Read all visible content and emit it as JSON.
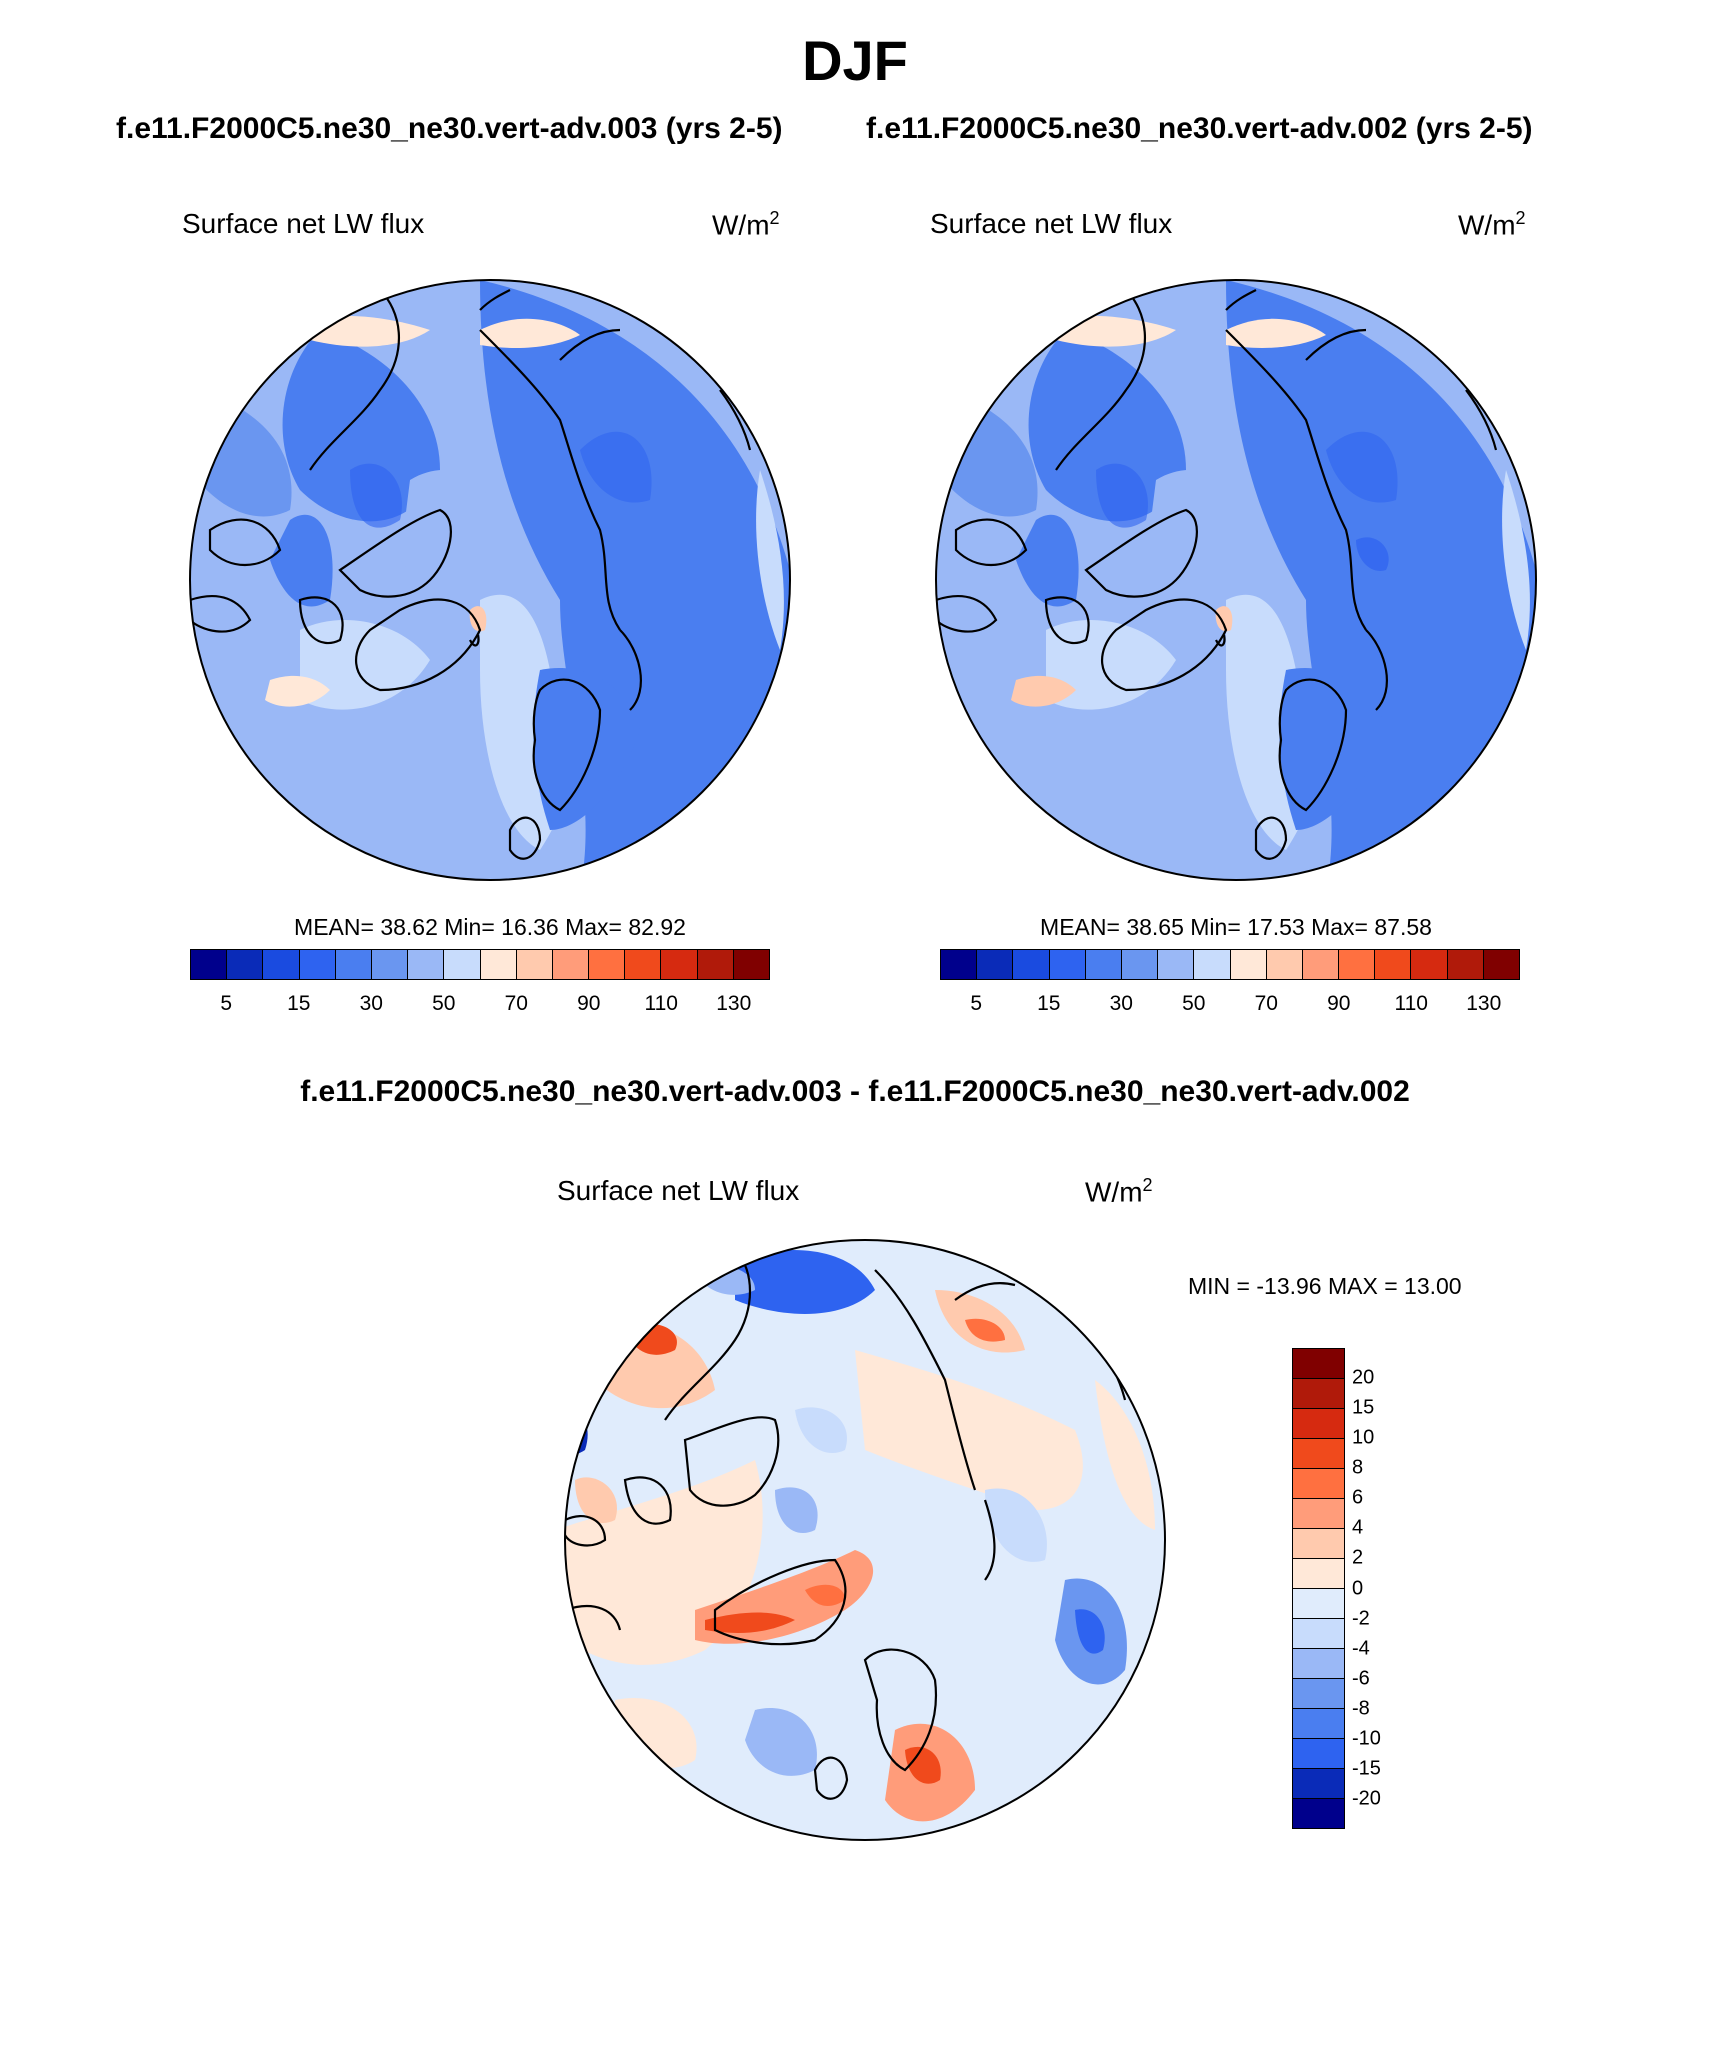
{
  "title": "DJF",
  "case_titles": [
    "f.e11.F2000C5.ne30_ne30.vert-adv.003 (yrs 2-5)",
    "f.e11.F2000C5.ne30_ne30.vert-adv.002 (yrs 2-5)"
  ],
  "diff_title": "f.e11.F2000C5.ne30_ne30.vert-adv.003 - f.e11.F2000C5.ne30_ne30.vert-adv.002",
  "variable": "Surface net LW flux",
  "units_base": "W/m",
  "units_exp": "2",
  "panels": [
    {
      "stats": "MEAN=  38.62  Min=  16.36  Max=  82.92"
    },
    {
      "stats": "MEAN=  38.65  Min=  17.53  Max=  87.58"
    }
  ],
  "diff_panel": {
    "stats": "MIN = -13.96 MAX =  13.00"
  },
  "abs_colorbar": {
    "colors": [
      "#00008c",
      "#0a2bb8",
      "#1a4be0",
      "#2e63f0",
      "#4a7ef0",
      "#6a96f0",
      "#9ab8f6",
      "#c8dcfc",
      "#ffe8d8",
      "#ffcaae",
      "#ff9c7a",
      "#ff7040",
      "#f04a1c",
      "#d62a10",
      "#b01a0a",
      "#800000"
    ],
    "labels": [
      "5",
      "15",
      "30",
      "50",
      "70",
      "90",
      "110",
      "130"
    ]
  },
  "diff_colorbar": {
    "colors": [
      "#800000",
      "#b01a0a",
      "#d62a10",
      "#f04a1c",
      "#ff7040",
      "#ff9c7a",
      "#ffcaae",
      "#ffe8d8",
      "#e0ecfc",
      "#c8dcfc",
      "#9ab8f6",
      "#6a96f0",
      "#4a7ef0",
      "#2e63f0",
      "#0a2bb8",
      "#00008c"
    ],
    "labels": [
      "20",
      "15",
      "10",
      "8",
      "6",
      "4",
      "2",
      "0",
      "-2",
      "-4",
      "-6",
      "-8",
      "-10",
      "-15",
      "-20"
    ]
  }
}
